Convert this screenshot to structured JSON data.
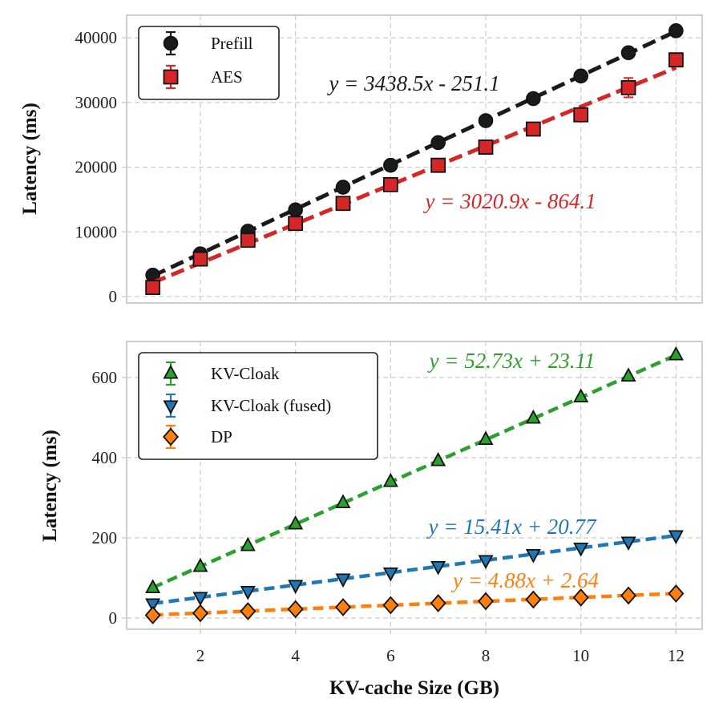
{
  "chart_data": [
    {
      "type": "line",
      "ylabel": "Latency (ms)",
      "xlabel": "",
      "xlim": [
        0.45,
        12.55
      ],
      "ylim": [
        -1000,
        43500
      ],
      "yticks": [
        0,
        10000,
        20000,
        30000,
        40000
      ],
      "ytick_labels": [
        "0",
        "10000",
        "20000",
        "30000",
        "40000"
      ],
      "grid": true,
      "legend": "top-left",
      "x": [
        1,
        2,
        3,
        4,
        5,
        6,
        7,
        8,
        9,
        10,
        11,
        12
      ],
      "series": [
        {
          "name": "Prefill",
          "color": "#1a1a1a",
          "marker": "circle",
          "values": [
            3300,
            6600,
            10100,
            13400,
            16900,
            20300,
            23800,
            27200,
            30600,
            34100,
            37700,
            41100
          ],
          "fit": {
            "slope": 3438.5,
            "intercept": -251.1
          },
          "equation": "y = 3438.5x - 251.1"
        },
        {
          "name": "AES",
          "color": "#d62728",
          "marker": "square",
          "values": [
            1400,
            5800,
            8700,
            11300,
            14400,
            17300,
            20300,
            23100,
            25900,
            28100,
            32300,
            36600
          ],
          "error_at_11": 1500,
          "fit": {
            "slope": 3020.9,
            "intercept": -864.1
          },
          "equation": "y = 3020.9x - 864.1"
        }
      ]
    },
    {
      "type": "line",
      "ylabel": "Latency (ms)",
      "xlabel": "KV-cache Size (GB)",
      "xlim": [
        0.45,
        12.55
      ],
      "ylim": [
        -28,
        690
      ],
      "xticks": [
        2,
        4,
        6,
        8,
        10,
        12
      ],
      "xtick_labels": [
        "2",
        "4",
        "6",
        "8",
        "10",
        "12"
      ],
      "yticks": [
        0,
        200,
        400,
        600
      ],
      "ytick_labels": [
        "0",
        "200",
        "400",
        "600"
      ],
      "grid": true,
      "legend": "top-left",
      "x": [
        1,
        2,
        3,
        4,
        5,
        6,
        7,
        8,
        9,
        10,
        11,
        12
      ],
      "series": [
        {
          "name": "KV-Cloak",
          "color": "#2ca02c",
          "marker": "triangle-up",
          "values": [
            75,
            128,
            180,
            234,
            287,
            340,
            392,
            445,
            498,
            551,
            603,
            656
          ],
          "fit": {
            "slope": 52.73,
            "intercept": 23.11
          },
          "equation": "y = 52.73x + 23.11"
        },
        {
          "name": "KV-Cloak (fused)",
          "color": "#1f77b4",
          "marker": "triangle-down",
          "values": [
            36,
            52,
            67,
            82,
            98,
            113,
            129,
            144,
            159,
            175,
            190,
            206
          ],
          "fit": {
            "slope": 15.41,
            "intercept": 20.77
          },
          "equation": "y = 15.41x + 20.77"
        },
        {
          "name": "DP",
          "color": "#ff7f0e",
          "marker": "diamond",
          "values": [
            7,
            12,
            17,
            22,
            27,
            32,
            37,
            42,
            46,
            51,
            56,
            61
          ],
          "fit": {
            "slope": 4.88,
            "intercept": 2.64
          },
          "equation": "y = 4.88x + 2.64"
        }
      ]
    }
  ]
}
